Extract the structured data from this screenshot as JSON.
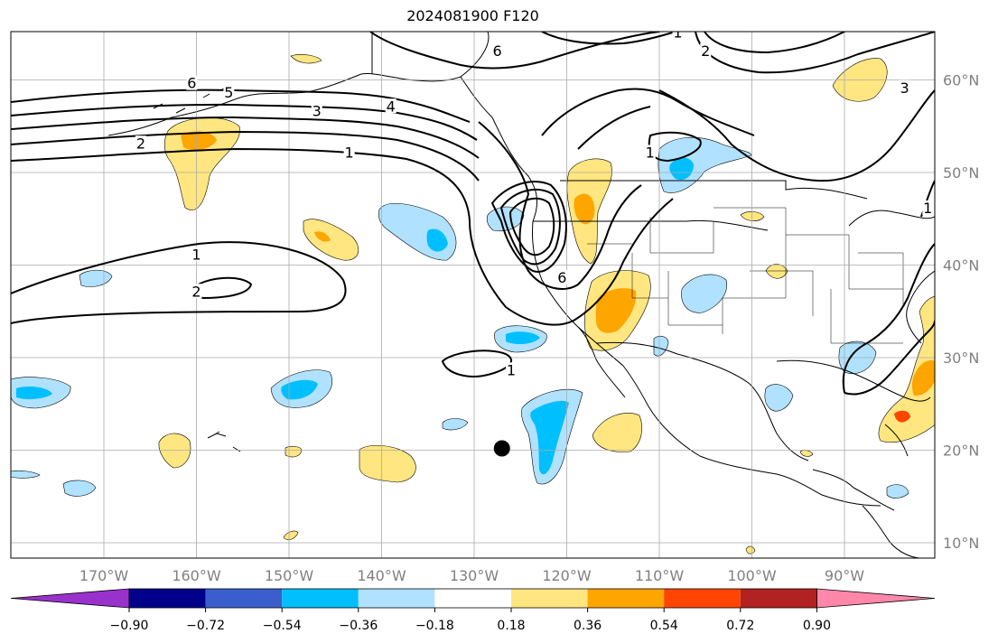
{
  "chart_data": {
    "type": "heatmap",
    "title": "2024081900 F120",
    "projection": "lat-lon map, Pacific and North America",
    "lon_range": [
      -180,
      -80
    ],
    "lat_range": [
      8,
      65
    ],
    "grid": true,
    "x_ticks": [
      {
        "lon": -170,
        "label": "170°W"
      },
      {
        "lon": -160,
        "label": "160°W"
      },
      {
        "lon": -150,
        "label": "150°W"
      },
      {
        "lon": -140,
        "label": "140°W"
      },
      {
        "lon": -130,
        "label": "130°W"
      },
      {
        "lon": -120,
        "label": "120°W"
      },
      {
        "lon": -110,
        "label": "110°W"
      },
      {
        "lon": -100,
        "label": "100°W"
      },
      {
        "lon": -90,
        "label": "90°W"
      }
    ],
    "y_ticks": [
      {
        "lat": 60,
        "label": "60°N"
      },
      {
        "lat": 50,
        "label": "50°N"
      },
      {
        "lat": 40,
        "label": "40°N"
      },
      {
        "lat": 30,
        "label": "30°N"
      },
      {
        "lat": 20,
        "label": "20°N"
      },
      {
        "lat": 10,
        "label": "10°N"
      }
    ],
    "colorbar": {
      "levels": [
        -0.9,
        -0.72,
        -0.54,
        -0.36,
        -0.18,
        0.18,
        0.36,
        0.54,
        0.72,
        0.9
      ],
      "tick_labels": [
        "−0.90",
        "−0.72",
        "−0.54",
        "−0.36",
        "−0.18",
        "0.18",
        "0.36",
        "0.54",
        "0.72",
        "0.90"
      ],
      "colors": [
        "#9932cc",
        "#00008b",
        "#3a5fcd",
        "#00bfff",
        "#b0e2ff",
        "#ffffff",
        "#ffe680",
        "#ffa500",
        "#ff4500",
        "#b22222",
        "#ff88aa"
      ],
      "extend": "both"
    },
    "contour_labels": [
      {
        "text": "6",
        "lon": -160.5,
        "lat": 59.5
      },
      {
        "text": "5",
        "lon": -156.5,
        "lat": 58.5
      },
      {
        "text": "4",
        "lon": -139,
        "lat": 57
      },
      {
        "text": "3",
        "lon": -147,
        "lat": 56.5
      },
      {
        "text": "2",
        "lon": -166,
        "lat": 53
      },
      {
        "text": "1",
        "lon": -143.5,
        "lat": 52
      },
      {
        "text": "6",
        "lon": -127.5,
        "lat": 63
      },
      {
        "text": "1",
        "lon": -108,
        "lat": 65
      },
      {
        "text": "2",
        "lon": -105,
        "lat": 63
      },
      {
        "text": "3",
        "lon": -83.5,
        "lat": 59
      },
      {
        "text": "1",
        "lon": -111,
        "lat": 52
      },
      {
        "text": "1",
        "lon": -81,
        "lat": 46
      },
      {
        "text": "6",
        "lon": -120.5,
        "lat": 38.5
      },
      {
        "text": "1",
        "lon": -160,
        "lat": 41
      },
      {
        "text": "2",
        "lon": -160,
        "lat": 37
      },
      {
        "text": "1",
        "lon": -126,
        "lat": 28.5
      }
    ],
    "anomaly_regions": [
      {
        "value": 0.36,
        "lon": -159,
        "lat": 52,
        "note": "Gulf of Alaska west"
      },
      {
        "value": 0.54,
        "lon": -119,
        "lat": 47,
        "note": "Pacific Northwest"
      },
      {
        "value": 0.54,
        "lon": -115,
        "lat": 34,
        "note": "Southwest US"
      },
      {
        "value": 0.36,
        "lon": -88,
        "lat": 25,
        "note": "Florida / Gulf"
      },
      {
        "value": -0.54,
        "lon": -134,
        "lat": 41,
        "note": "NE Pacific"
      },
      {
        "value": -0.54,
        "lon": -121,
        "lat": 23,
        "note": "off Baja"
      },
      {
        "value": -0.54,
        "lon": -108,
        "lat": 49,
        "note": "Northern Rockies"
      },
      {
        "value": -0.36,
        "lon": -178,
        "lat": 26,
        "note": "west edge"
      },
      {
        "value": -0.54,
        "lon": -147,
        "lat": 26,
        "note": "central Pacific"
      },
      {
        "value": -0.36,
        "lon": -90,
        "lat": 28,
        "note": "Gulf coast"
      }
    ],
    "marker": {
      "label": "",
      "lon": -127,
      "lat": 20
    }
  }
}
